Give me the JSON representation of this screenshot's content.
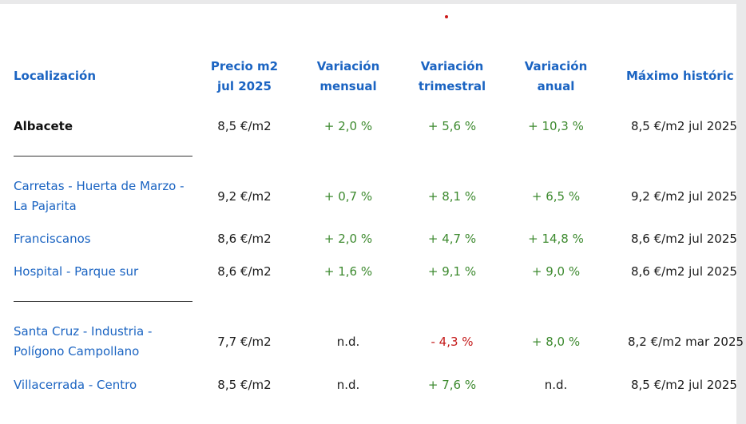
{
  "headers": {
    "location": "Localización",
    "price_line1": "Precio m2",
    "price_line2": "jul 2025",
    "monthly_line1": "Variación",
    "monthly_line2": "mensual",
    "quarterly_line1": "Variación",
    "quarterly_line2": "trimestral",
    "annual_line1": "Variación",
    "annual_line2": "anual",
    "max": "Máximo históric"
  },
  "rows": [
    {
      "loc1": "Albacete",
      "loc2": "",
      "price": "8,5 €/m2",
      "monthly": "+ 2,0 %",
      "quarterly": "+ 5,6 %",
      "annual": "+ 10,3 %",
      "max": "8,5 €/m2 jul 2025"
    },
    {
      "loc1": "Carretas - Huerta de Marzo -",
      "loc2": "La Pajarita",
      "price": "9,2 €/m2",
      "monthly": "+ 0,7 %",
      "quarterly": "+ 8,1 %",
      "annual": "+ 6,5 %",
      "max": "9,2 €/m2 jul 2025"
    },
    {
      "loc1": "Franciscanos",
      "loc2": "",
      "price": "8,6 €/m2",
      "monthly": "+ 2,0 %",
      "quarterly": "+ 4,7 %",
      "annual": "+ 14,8 %",
      "max": "8,6 €/m2 jul 2025"
    },
    {
      "loc1": "Hospital - Parque sur",
      "loc2": "",
      "price": "8,6 €/m2",
      "monthly": "+ 1,6 %",
      "quarterly": "+ 9,1 %",
      "annual": "+ 9,0 %",
      "max": "8,6 €/m2 jul 2025"
    },
    {
      "loc1": "Santa Cruz - Industria -",
      "loc2": "Polígono Campollano",
      "price": "7,7 €/m2",
      "monthly": "n.d.",
      "quarterly": "- 4,3 %",
      "annual": "+ 8,0 %",
      "max": "8,2 €/m2 mar 2025"
    },
    {
      "loc1": "Villacerrada - Centro",
      "loc2": "",
      "price": "8,5 €/m2",
      "monthly": "n.d.",
      "quarterly": "+ 7,6 %",
      "annual": "n.d.",
      "max": "8,5 €/m2 jul 2025"
    }
  ],
  "colors": {
    "link_blue": "#1b64c2",
    "positive_green": "#3d8a2f",
    "negative_red": "#c41a1a"
  }
}
